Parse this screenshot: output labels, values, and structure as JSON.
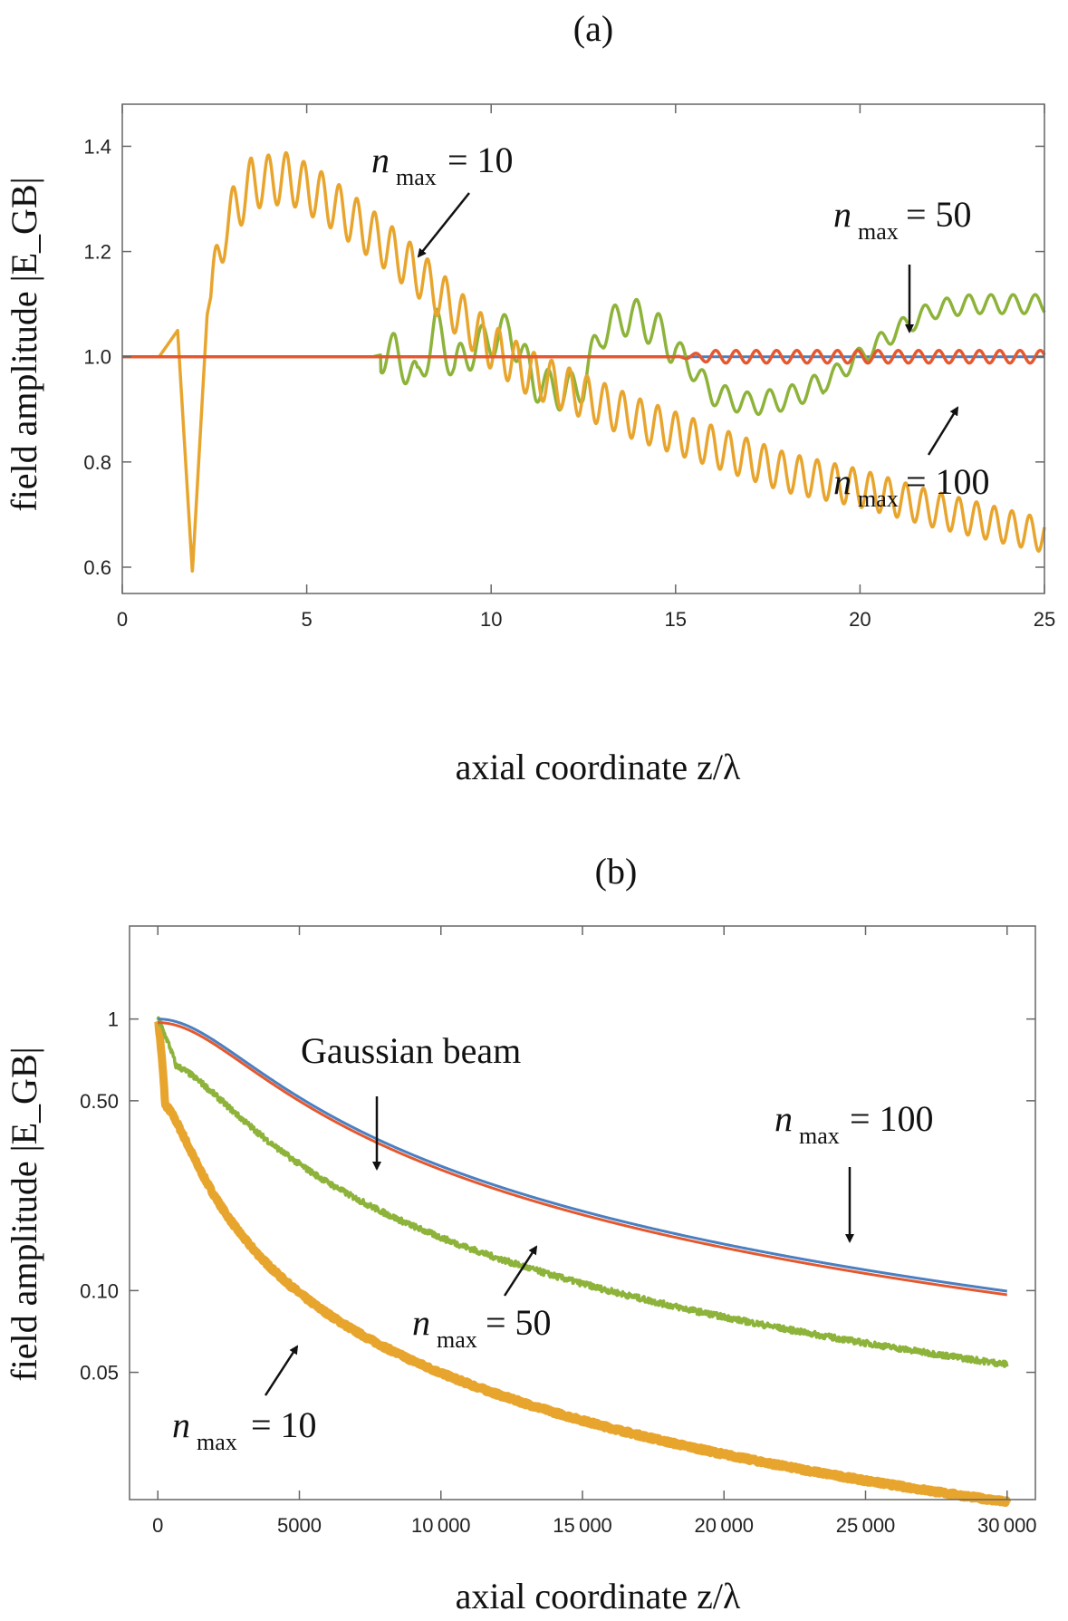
{
  "chart_data": [
    {
      "type": "line",
      "panel_label": "(a)",
      "xlabel": "axial coordinate z/λ",
      "ylabel": "field amplitude |E_GB|",
      "xlim": [
        0,
        25
      ],
      "ylim": [
        0.55,
        1.48
      ],
      "xticks": [
        0,
        5,
        10,
        15,
        20,
        25
      ],
      "xtick_labels": [
        "0",
        "5",
        "10",
        "15",
        "20",
        "25"
      ],
      "yticks": [
        0.6,
        0.8,
        1.0,
        1.2,
        1.4
      ],
      "ytick_labels": [
        "0.6",
        "0.8",
        "1.0",
        "1.2",
        "1.4"
      ],
      "series": [
        {
          "name": "Gaussian beam",
          "color": "#4a7fc1",
          "model": "flat",
          "base": 1.0
        },
        {
          "name": "n_max = 100",
          "color": "#e5582f",
          "model": "wiggle_late",
          "start": 15,
          "amp": 0.012,
          "period": 0.55
        },
        {
          "name": "n_max = 50",
          "color": "#8db33a",
          "model": "mid",
          "points": [
            [
              0,
              1.0
            ],
            [
              6.8,
              1.0
            ],
            [
              7.4,
              1.01
            ],
            [
              8,
              0.95
            ],
            [
              8.5,
              1.06
            ],
            [
              9,
              0.98
            ],
            [
              9.6,
              1.02
            ],
            [
              10.5,
              1.05
            ],
            [
              11.2,
              0.95
            ],
            [
              12,
              0.93
            ],
            [
              12.5,
              0.95
            ],
            [
              13,
              1.05
            ],
            [
              13.8,
              1.08
            ],
            [
              14.5,
              1.05
            ],
            [
              15.2,
              1.0
            ],
            [
              16,
              0.93
            ],
            [
              17,
              0.91
            ],
            [
              18,
              0.92
            ],
            [
              19,
              0.95
            ],
            [
              20,
              1.0
            ],
            [
              21,
              1.05
            ],
            [
              22,
              1.09
            ],
            [
              23,
              1.1
            ],
            [
              25,
              1.1
            ]
          ]
        },
        {
          "name": "n_max = 10",
          "color": "#e8a52e",
          "model": "early",
          "points": [
            [
              0,
              1.0
            ],
            [
              1.0,
              1.0
            ],
            [
              1.5,
              1.05
            ],
            [
              1.9,
              0.59
            ],
            [
              2.3,
              1.08
            ],
            [
              2.8,
              1.25
            ],
            [
              3.5,
              1.33
            ],
            [
              4.5,
              1.34
            ],
            [
              5.5,
              1.3
            ],
            [
              7,
              1.22
            ],
            [
              8,
              1.16
            ],
            [
              9,
              1.09
            ],
            [
              10,
              1.02
            ],
            [
              11,
              0.97
            ],
            [
              12,
              0.94
            ],
            [
              14,
              0.88
            ],
            [
              16,
              0.83
            ],
            [
              18,
              0.78
            ],
            [
              20,
              0.75
            ],
            [
              22,
              0.71
            ],
            [
              25,
              0.66
            ]
          ]
        }
      ],
      "annotations": [
        {
          "label": "n_max = 10",
          "base": "n",
          "sub": "max",
          "value": "= 10"
        },
        {
          "label": "n_max = 50",
          "base": "n",
          "sub": "max",
          "value": "= 50"
        },
        {
          "label": "n_max = 100",
          "base": "n",
          "sub": "max",
          "value": "= 100"
        }
      ]
    },
    {
      "type": "line",
      "panel_label": "(b)",
      "xlabel": "axial coordinate z/λ",
      "ylabel": "field amplitude |E_GB|",
      "yscale": "log",
      "xlim": [
        -1000,
        31000
      ],
      "ylim": [
        0.017,
        2.2
      ],
      "xticks": [
        0,
        5000,
        10000,
        15000,
        20000,
        25000,
        30000
      ],
      "xtick_labels": [
        "0",
        "5000",
        "10 000",
        "15 000",
        "20 000",
        "25 000",
        "30 000"
      ],
      "yticks": [
        0.05,
        0.1,
        0.5,
        1
      ],
      "ytick_labels": [
        "0.05",
        "0.10",
        "0.50",
        "1"
      ],
      "series": [
        {
          "name": "Gaussian beam",
          "color": "#4a7fc1",
          "model": "gauss",
          "z0": 3000,
          "scale": 1.0
        },
        {
          "name": "n_max = 100",
          "color": "#e5582f",
          "model": "gauss",
          "z0": 3000,
          "scale": 0.97
        },
        {
          "name": "n_max = 50",
          "color": "#8db33a",
          "model": "gauss_noisy",
          "z0": 2300,
          "scale": 0.7
        },
        {
          "name": "n_max = 10",
          "color": "#e8a52e",
          "model": "gauss_thick",
          "z0": 1000,
          "scale": 0.5
        }
      ],
      "annotations": [
        {
          "label": "Gaussian beam"
        },
        {
          "label": "n_max = 100",
          "base": "n",
          "sub": "max",
          "value": "= 100"
        },
        {
          "label": "n_max = 50",
          "base": "n",
          "sub": "max",
          "value": "= 50"
        },
        {
          "label": "n_max = 10",
          "base": "n",
          "sub": "max",
          "value": "= 10"
        }
      ]
    }
  ]
}
